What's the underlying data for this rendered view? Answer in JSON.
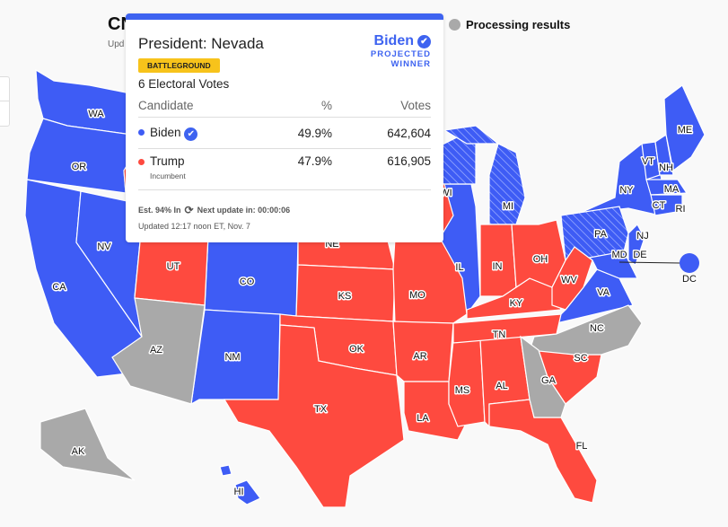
{
  "header": {
    "title": "CN",
    "subtitle": "Upd"
  },
  "legend": {
    "processing": "Processing results"
  },
  "colors": {
    "dem": "#3e5cf5",
    "rep": "#fe4a3f",
    "processing": "#a9a9a9",
    "accent": "#3e63f0",
    "battleground": "#f7c31b"
  },
  "tooltip": {
    "race": "President: Nevada",
    "badge": "BATTLEGROUND",
    "electoral_votes": "6 Electoral Votes",
    "winner": {
      "name": "Biden",
      "line1": "PROJECTED",
      "line2": "WINNER",
      "icon": "check-circle-icon"
    },
    "columns": {
      "candidate": "Candidate",
      "pct": "%",
      "votes": "Votes"
    },
    "candidates": [
      {
        "name": "Biden",
        "pct": "49.9%",
        "votes": "642,604",
        "note": ""
      },
      {
        "name": "Trump",
        "pct": "47.9%",
        "votes": "616,905",
        "note": "Incumbent"
      }
    ],
    "est": "Est. 94% In",
    "next_update": "Next update in: 00:00:06",
    "updated": "Updated 12:17 noon ET, Nov. 7"
  },
  "states": {
    "WA": "WA",
    "OR": "OR",
    "CA": "CA",
    "NV": "NV",
    "UT": "UT",
    "CO": "CO",
    "AZ": "AZ",
    "NM": "NM",
    "NE": "NE",
    "KS": "KS",
    "OK": "OK",
    "TX": "TX",
    "MO": "MO",
    "AR": "AR",
    "LA": "LA",
    "MS": "MS",
    "AL": "AL",
    "TN": "TN",
    "KY": "KY",
    "IL": "IL",
    "IN": "IN",
    "OH": "OH",
    "WV": "WV",
    "VA": "VA",
    "NC": "NC",
    "SC": "SC",
    "GA": "GA",
    "FL": "FL",
    "PA": "PA",
    "NY": "NY",
    "NJ": "NJ",
    "MD": "MD",
    "DE": "DE",
    "VT": "VT",
    "NH": "NH",
    "ME": "ME",
    "MA": "MA",
    "CT": "CT",
    "RI": "RI",
    "WI": "WI",
    "MI": "MI",
    "AK": "AK",
    "HI": "HI",
    "DC": "DC"
  }
}
